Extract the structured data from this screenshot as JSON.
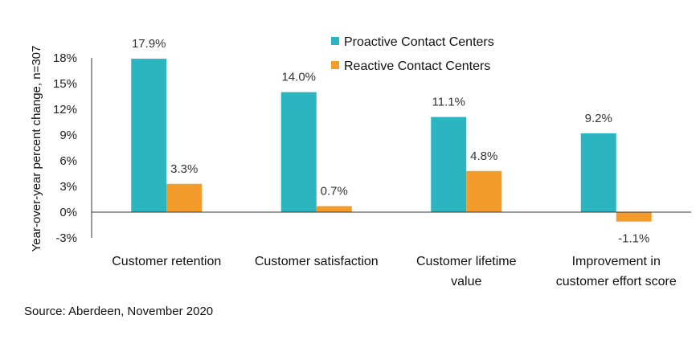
{
  "chart_data": {
    "type": "bar",
    "categories": [
      [
        "Customer retention"
      ],
      [
        "Customer satisfaction"
      ],
      [
        "Customer lifetime",
        "value"
      ],
      [
        "Improvement in",
        "customer effort score"
      ]
    ],
    "series": [
      {
        "name": "Proactive Contact Centers",
        "color": "#2bb5c0",
        "values": [
          17.9,
          14.0,
          11.1,
          9.2
        ],
        "labels": [
          "17.9%",
          "14.0%",
          "11.1%",
          "9.2%"
        ]
      },
      {
        "name": "Reactive Contact Centers",
        "color": "#f39b2b",
        "values": [
          3.3,
          0.7,
          4.8,
          -1.1
        ],
        "labels": [
          "3.3%",
          "0.7%",
          "4.8%",
          "-1.1%"
        ]
      }
    ],
    "ylabel": "Year-over-year percent change, n=307",
    "ylim": [
      -3,
      18
    ],
    "yticks": [
      "18%",
      "15%",
      "12%",
      "9%",
      "6%",
      "3%",
      "0%",
      "-3%"
    ],
    "ytick_values": [
      18,
      15,
      12,
      9,
      6,
      3,
      0,
      -3
    ],
    "legend_position": "top-center",
    "grid": false,
    "source": "Source: Aberdeen, November 2020"
  }
}
